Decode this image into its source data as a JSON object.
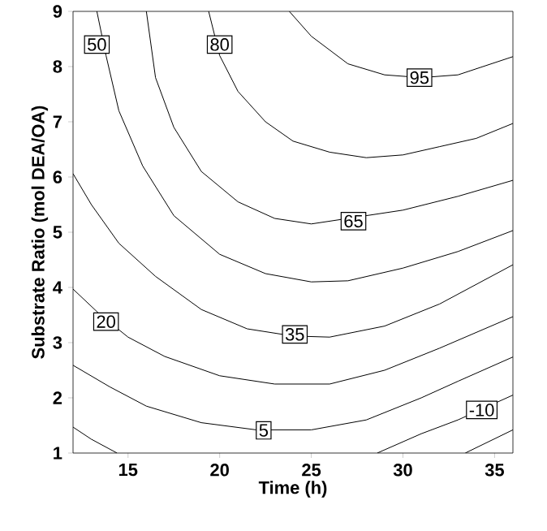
{
  "chart_data": {
    "type": "line",
    "xlabel": "Time (h)",
    "ylabel": "Substrate Ratio (mol DEA/OA)",
    "xlim": [
      12,
      36
    ],
    "ylim": [
      1,
      9
    ],
    "xticks": [
      15,
      20,
      25,
      30,
      35
    ],
    "yticks": [
      1,
      2,
      3,
      4,
      5,
      6,
      7,
      8,
      9
    ],
    "marker": "none",
    "line_style": "solid",
    "series": [
      {
        "color": "#000000",
        "x": [
          23.8,
          25,
          27,
          29,
          31,
          33,
          36
        ],
        "values": [
          9,
          8.55,
          8.05,
          7.85,
          7.8,
          7.85,
          8.18
        ]
      },
      {
        "color": "#000000",
        "x": [
          19.4,
          20,
          21,
          22.5,
          24,
          26,
          28,
          30,
          32,
          34,
          36
        ],
        "values": [
          9,
          8.2,
          7.55,
          7.0,
          6.65,
          6.45,
          6.35,
          6.4,
          6.55,
          6.7,
          6.97
        ]
      },
      {
        "color": "#000000",
        "x": [
          16,
          16.5,
          17.5,
          19,
          21,
          23,
          25,
          30,
          33,
          36
        ],
        "values": [
          9,
          7.8,
          6.9,
          6.1,
          5.55,
          5.25,
          5.15,
          5.4,
          5.65,
          5.94
        ]
      },
      {
        "color": "#000000",
        "x": [
          13.3,
          13.8,
          14.5,
          15.8,
          17.5,
          20,
          22.5,
          25,
          27,
          30,
          33,
          36
        ],
        "values": [
          9,
          8.2,
          7.2,
          6.2,
          5.3,
          4.6,
          4.25,
          4.1,
          4.12,
          4.35,
          4.65,
          5.03
        ]
      },
      {
        "color": "#000000",
        "x": [
          12,
          13,
          14.5,
          16.5,
          19,
          21.5,
          24,
          26,
          29,
          32,
          36
        ],
        "values": [
          6.06,
          5.5,
          4.8,
          4.2,
          3.6,
          3.25,
          3.12,
          3.1,
          3.3,
          3.7,
          4.41
        ]
      },
      {
        "color": "#000000",
        "x": [
          12,
          13.5,
          15,
          17,
          20,
          23,
          26,
          29,
          32,
          36
        ],
        "values": [
          3.97,
          3.5,
          3.1,
          2.75,
          2.4,
          2.25,
          2.25,
          2.5,
          2.9,
          3.47
        ]
      },
      {
        "color": "#000000",
        "x": [
          12,
          14,
          16,
          19,
          22,
          25,
          28,
          31,
          33,
          36
        ],
        "values": [
          2.59,
          2.2,
          1.85,
          1.55,
          1.42,
          1.42,
          1.6,
          2.0,
          2.3,
          2.74
        ]
      },
      {
        "color": "#000000",
        "x": [
          12,
          13,
          14.4,
          20,
          28.6,
          31,
          33,
          36
        ],
        "values": [
          1.47,
          1.25,
          1.0,
          null,
          1.0,
          1.35,
          1.6,
          2.05
        ]
      },
      {
        "color": "#000000",
        "x": [
          33.4,
          36
        ],
        "values": [
          1.0,
          1.42
        ]
      }
    ],
    "annotations": [
      {
        "text": "50",
        "x": 13.3,
        "y": 8.4
      },
      {
        "text": "80",
        "x": 20,
        "y": 8.4
      },
      {
        "text": "95",
        "x": 30.9,
        "y": 7.8
      },
      {
        "text": "65",
        "x": 27.3,
        "y": 5.2
      },
      {
        "text": "35",
        "x": 24.1,
        "y": 3.15
      },
      {
        "text": "20",
        "x": 13.8,
        "y": 3.38
      },
      {
        "text": "5",
        "x": 22.4,
        "y": 1.41
      },
      {
        "text": "-10",
        "x": 34.3,
        "y": 1.78
      }
    ]
  }
}
